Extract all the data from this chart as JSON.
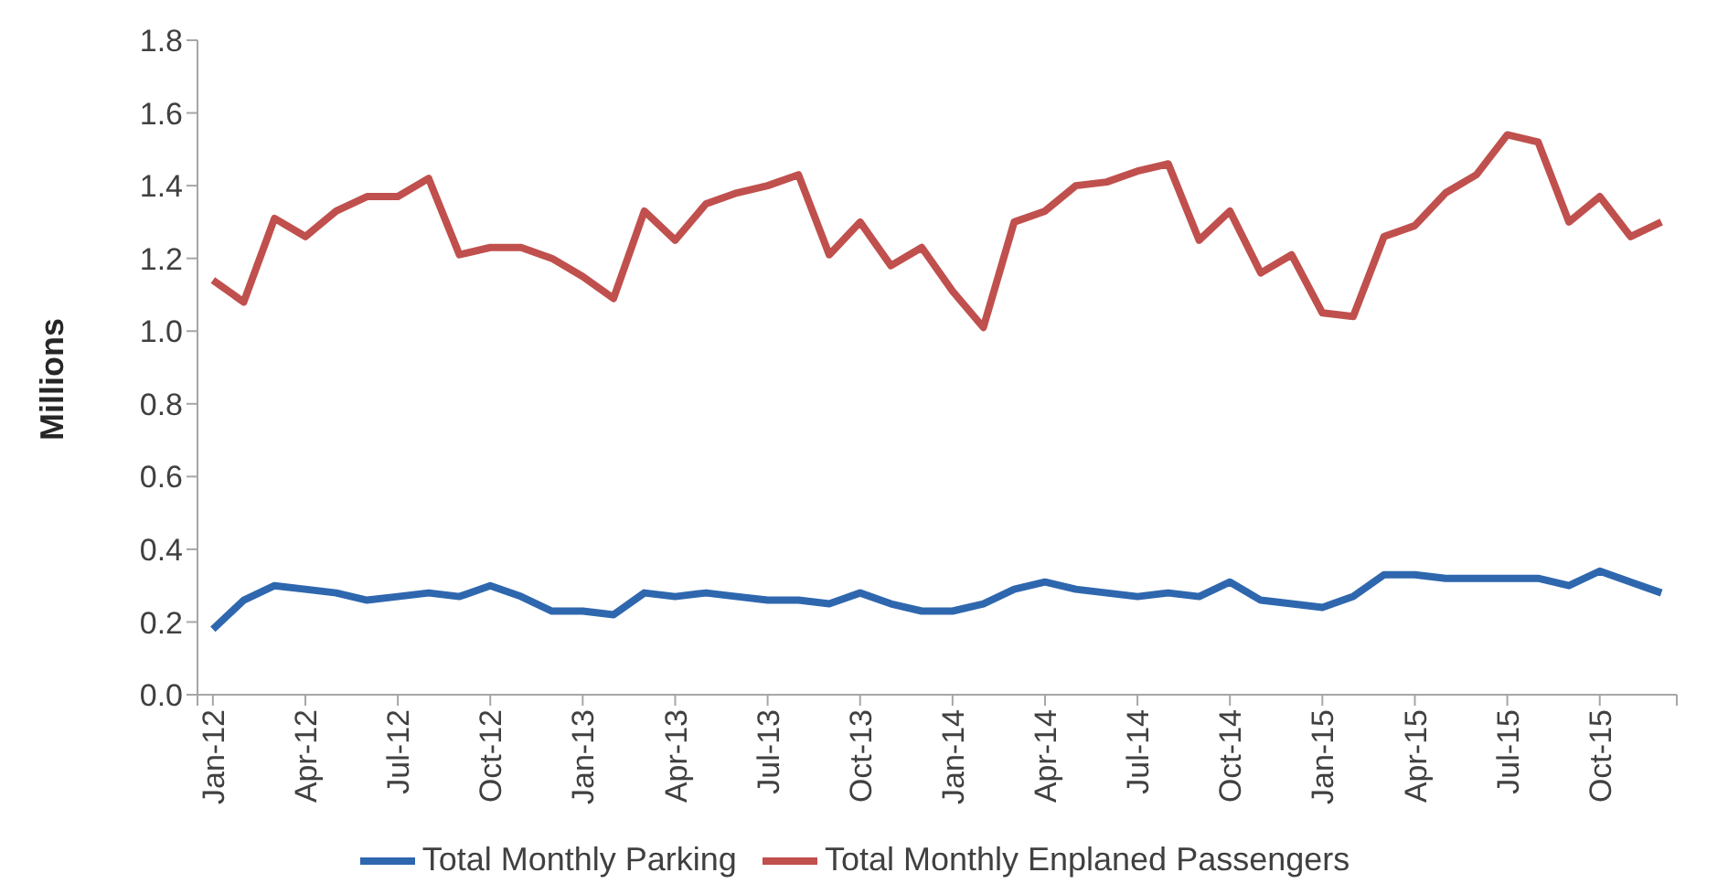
{
  "chart_data": {
    "type": "line",
    "ylabel": "Millions",
    "categories": [
      "Jan-12",
      null,
      null,
      "Apr-12",
      null,
      null,
      "Jul-12",
      null,
      null,
      "Oct-12",
      null,
      null,
      "Jan-13",
      null,
      null,
      "Apr-13",
      null,
      null,
      "Jul-13",
      null,
      null,
      "Oct-13",
      null,
      null,
      "Jan-14",
      null,
      null,
      "Apr-14",
      null,
      null,
      "Jul-14",
      null,
      null,
      "Oct-14",
      null,
      null,
      "Jan-15",
      null,
      null,
      "Apr-15",
      null,
      null,
      "Jul-15",
      null,
      null,
      "Oct-15",
      null,
      null
    ],
    "series": [
      {
        "name": "Total Monthly Parking",
        "color": "#2e67ae",
        "values": [
          0.18,
          0.26,
          0.3,
          0.29,
          0.28,
          0.26,
          0.27,
          0.28,
          0.27,
          0.3,
          0.27,
          0.23,
          0.23,
          0.22,
          0.28,
          0.27,
          0.28,
          0.27,
          0.26,
          0.26,
          0.25,
          0.28,
          0.25,
          0.23,
          0.23,
          0.25,
          0.29,
          0.31,
          0.29,
          0.28,
          0.27,
          0.28,
          0.27,
          0.31,
          0.26,
          0.25,
          0.24,
          0.27,
          0.33,
          0.33,
          0.32,
          0.32,
          0.32,
          0.32,
          0.3,
          0.34,
          0.31,
          0.28
        ]
      },
      {
        "name": "Total Monthly Enplaned Passengers",
        "color": "#c0504d",
        "values": [
          1.14,
          1.08,
          1.31,
          1.26,
          1.33,
          1.37,
          1.37,
          1.42,
          1.21,
          1.23,
          1.23,
          1.2,
          1.15,
          1.09,
          1.33,
          1.25,
          1.35,
          1.38,
          1.4,
          1.43,
          1.21,
          1.3,
          1.18,
          1.23,
          1.11,
          1.01,
          1.3,
          1.33,
          1.4,
          1.41,
          1.44,
          1.46,
          1.25,
          1.33,
          1.16,
          1.21,
          1.05,
          1.04,
          1.26,
          1.29,
          1.38,
          1.43,
          1.54,
          1.52,
          1.3,
          1.37,
          1.26,
          1.3
        ]
      }
    ],
    "ylim": [
      0,
      1.8
    ],
    "yticks": [
      {
        "value": 0,
        "label": "0.0"
      },
      {
        "value": 0.2,
        "label": "0.2"
      },
      {
        "value": 0.4,
        "label": "0.4"
      },
      {
        "value": 0.6,
        "label": "0.6"
      },
      {
        "value": 0.8,
        "label": "0.8"
      },
      {
        "value": 1,
        "label": "1.0"
      },
      {
        "value": 1.2,
        "label": "1.2"
      },
      {
        "value": 1.4,
        "label": "1.4"
      },
      {
        "value": 1.6,
        "label": "1.6"
      },
      {
        "value": 1.8,
        "label": "1.8"
      }
    ],
    "grid": false,
    "legend": "bottom",
    "marker": "none",
    "line_style": "solid"
  }
}
